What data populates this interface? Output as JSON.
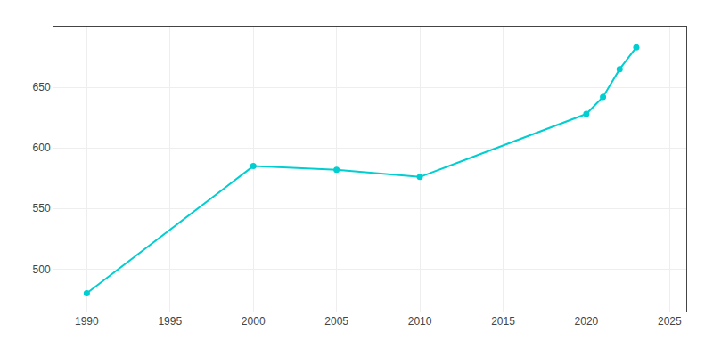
{
  "chart_data": {
    "type": "line",
    "x": [
      1990,
      2000,
      2005,
      2010,
      2020,
      2021,
      2022,
      2023
    ],
    "values": [
      480,
      585,
      582,
      576,
      628,
      642,
      665,
      683
    ],
    "color": "#00CED1",
    "marker": "circle",
    "xlim": [
      1988,
      2026
    ],
    "xticks": [
      1990,
      1995,
      2000,
      2005,
      2010,
      2015,
      2020,
      2025
    ],
    "ylim": [
      465,
      700
    ],
    "yticks": [
      500,
      550,
      600,
      650
    ],
    "grid": true
  }
}
